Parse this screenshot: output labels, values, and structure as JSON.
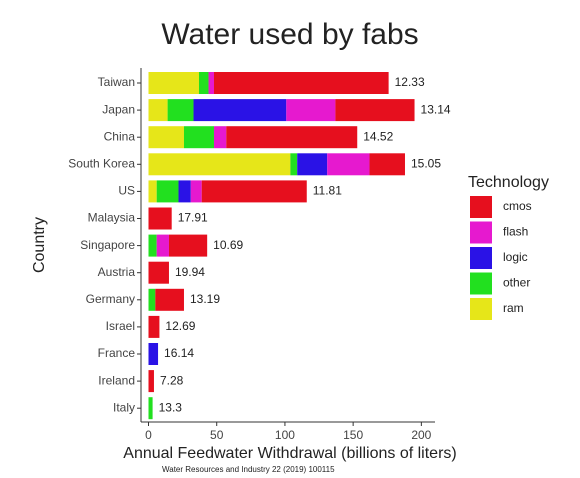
{
  "chart_data": {
    "type": "stacked-bar-horizontal",
    "title": "Water used by fabs",
    "x_label": "Annual Feedwater Withdrawal (billions of liters)",
    "y_label": "Country",
    "source": "Water Resources and Industry 22 (2019) 100115",
    "legend_title": "Technology",
    "categories": [
      "Taiwan",
      "Japan",
      "China",
      "South Korea",
      "US",
      "Malaysia",
      "Singapore",
      "Austria",
      "Germany",
      "Israel",
      "France",
      "Ireland",
      "Italy"
    ],
    "series": [
      {
        "name": "ram",
        "color": "#e6e619",
        "values": [
          37,
          14,
          26,
          104,
          6,
          0,
          0,
          0,
          0,
          0,
          0,
          0,
          0
        ]
      },
      {
        "name": "other",
        "color": "#22e01f",
        "values": [
          7,
          19,
          22,
          5,
          16,
          0,
          6,
          0,
          5,
          0,
          0,
          0,
          3
        ]
      },
      {
        "name": "logic",
        "color": "#2a12e6",
        "values": [
          0,
          68,
          0,
          22,
          9,
          0,
          0,
          0,
          0,
          0,
          7,
          0,
          0
        ]
      },
      {
        "name": "flash",
        "color": "#e619cf",
        "values": [
          4,
          36,
          9,
          31,
          8,
          0,
          9,
          0,
          0,
          0,
          0,
          0,
          0
        ]
      },
      {
        "name": "cmos",
        "color": "#e60f1e",
        "values": [
          128,
          58,
          96,
          26,
          77,
          17,
          28,
          15,
          21,
          8,
          0,
          4,
          0
        ]
      }
    ],
    "legend_order": [
      4,
      3,
      2,
      1,
      0
    ],
    "end_labels": [
      12.33,
      13.14,
      14.52,
      15.05,
      11.81,
      17.91,
      10.69,
      19.94,
      13.19,
      12.69,
      16.14,
      7.28,
      13.3
    ],
    "xlim": [
      -5.5,
      210
    ],
    "xticks": [
      0,
      50,
      100,
      150,
      200
    ]
  }
}
